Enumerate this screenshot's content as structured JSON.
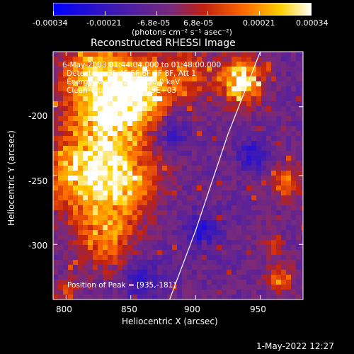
{
  "colorbar": {
    "ticks": [
      "-0.00034",
      "-0.00021",
      "-6.8e-05",
      "6.8e-05",
      "0.00021",
      "0.00034"
    ],
    "unit_label": "(photons cm⁻² s⁻¹ asec⁻²)",
    "colors": [
      "#0000ff",
      "#3a18b8",
      "#7a2a7a",
      "#c02010",
      "#ff6a00",
      "#ffd000",
      "#ffffff"
    ]
  },
  "chart_data": {
    "type": "heatmap",
    "title": "Reconstructed RHESSI Image",
    "xlabel": "Heliocentric X (arcsec)",
    "ylabel": "Heliocentric Y (arcsec)",
    "xlim": [
      790,
      983
    ],
    "ylim": [
      -340,
      -160
    ],
    "x_ticks": [
      800,
      850,
      900,
      950
    ],
    "y_ticks": [
      -200,
      -250,
      -300
    ],
    "limb_curve": [
      [
        880,
        -340
      ],
      [
        900,
        -290
      ],
      [
        925,
        -220
      ],
      [
        950,
        -160
      ]
    ],
    "peak": [
      935,
      -181
    ],
    "annotations": {
      "time": "6-May-2003 01:44:04.000 to 01:48:00.000",
      "detectors": "Detectors: 3F 4F 5F 6F 7F 8F, Att 1",
      "energy": "Energy Range: 25.0 - 50.0 keV",
      "clean": "Clean      Total counts: 4.29E+03",
      "peak_label": "Position of Peak = [935,-181]"
    }
  },
  "footer": {
    "timestamp": "1-May-2022 12:27"
  }
}
